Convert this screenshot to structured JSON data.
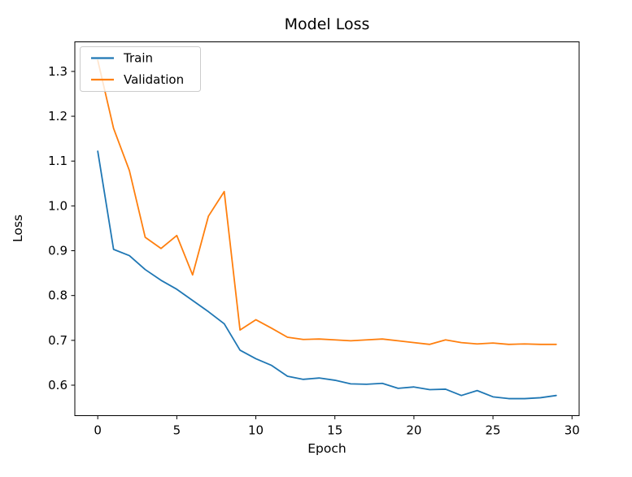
{
  "figure": {
    "background": "#ffffff",
    "axis_color": "#000000"
  },
  "chart_data": {
    "type": "line",
    "title": "Model Loss",
    "xlabel": "Epoch",
    "ylabel": "Loss",
    "x": [
      0,
      1,
      2,
      3,
      4,
      5,
      6,
      7,
      8,
      9,
      10,
      11,
      12,
      13,
      14,
      15,
      16,
      17,
      18,
      19,
      20,
      21,
      22,
      23,
      24,
      25,
      26,
      27,
      28,
      29
    ],
    "series": [
      {
        "name": "Train",
        "color": "#1f77b4",
        "values": [
          1.122,
          0.903,
          0.889,
          0.858,
          0.834,
          0.814,
          0.789,
          0.764,
          0.737,
          0.678,
          0.659,
          0.644,
          0.62,
          0.613,
          0.616,
          0.611,
          0.603,
          0.602,
          0.604,
          0.593,
          0.596,
          0.59,
          0.591,
          0.577,
          0.588,
          0.574,
          0.57,
          0.57,
          0.572,
          0.577
        ]
      },
      {
        "name": "Validation",
        "color": "#ff7f0e",
        "values": [
          1.325,
          1.173,
          1.079,
          0.93,
          0.905,
          0.934,
          0.846,
          0.977,
          1.032,
          0.723,
          0.746,
          0.727,
          0.707,
          0.702,
          0.703,
          0.701,
          0.699,
          0.701,
          0.703,
          0.699,
          0.695,
          0.691,
          0.701,
          0.695,
          0.692,
          0.694,
          0.691,
          0.692,
          0.691,
          0.691
        ]
      }
    ],
    "xticks": [
      0,
      5,
      10,
      15,
      20,
      25,
      30
    ],
    "yticks": [
      0.6,
      0.7,
      0.8,
      0.9,
      1.0,
      1.1,
      1.2,
      1.3
    ],
    "xlim": [
      -1.45,
      30.45
    ],
    "ylim": [
      0.532,
      1.366
    ],
    "grid": false,
    "legend": {
      "position": "upper left",
      "entries": [
        "Train",
        "Validation"
      ],
      "border_color": "#cccccc",
      "background": "rgba(255,255,255,0.8)"
    }
  }
}
